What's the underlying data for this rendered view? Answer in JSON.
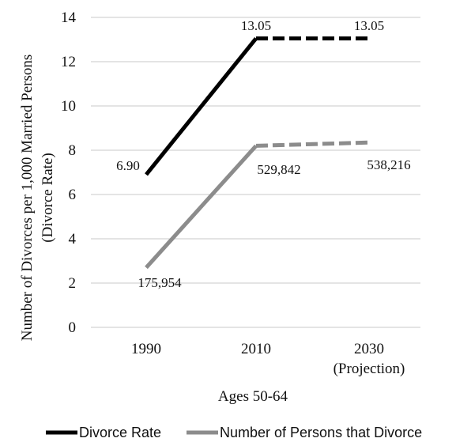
{
  "chart_data": {
    "type": "line",
    "title": "",
    "categories": [
      "1990",
      "2010",
      "2030"
    ],
    "category_sublabels": [
      "",
      "",
      "(Projection)"
    ],
    "xlabel": "Ages 50-64",
    "ylabel_line1": "Number of Divorces per 1,000 Married Persons",
    "ylabel_line2": "(Divorce Rate)",
    "ylim": [
      0,
      14
    ],
    "yticks": [
      0,
      2,
      4,
      6,
      8,
      10,
      12,
      14
    ],
    "grid": true,
    "legend_position": "bottom",
    "series": [
      {
        "name": "Divorce Rate",
        "color": "#000000",
        "values": [
          6.9,
          13.05,
          13.05
        ],
        "labels": [
          "6.90",
          "13.05",
          "13.05"
        ],
        "projected_segment": "dashed"
      },
      {
        "name": "Number of Persons that Divorce",
        "color": "#8c8c8c",
        "values": [
          2.7,
          8.2,
          8.35
        ],
        "labels": [
          "175,954",
          "529,842",
          "538,216"
        ],
        "projected_segment": "dashed"
      }
    ]
  }
}
